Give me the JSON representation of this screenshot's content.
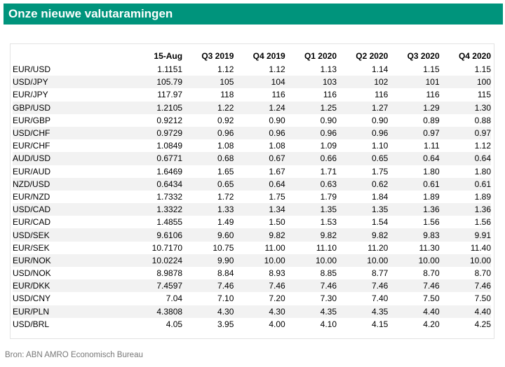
{
  "title": "Onze nieuwe valutaramingen",
  "columns": [
    "",
    "15-Aug",
    "Q3 2019",
    "Q4 2019",
    "Q1 2020",
    "Q2 2020",
    "Q3 2020",
    "Q4 2020"
  ],
  "rows": [
    [
      "EUR/USD",
      "1.1151",
      "1.12",
      "1.12",
      "1.13",
      "1.14",
      "1.15",
      "1.15"
    ],
    [
      "USD/JPY",
      "105.79",
      "105",
      "104",
      "103",
      "102",
      "101",
      "100"
    ],
    [
      "EUR/JPY",
      "117.97",
      "118",
      "116",
      "116",
      "116",
      "116",
      "115"
    ],
    [
      "GBP/USD",
      "1.2105",
      "1.22",
      "1.24",
      "1.25",
      "1.27",
      "1.29",
      "1.30"
    ],
    [
      "EUR/GBP",
      "0.9212",
      "0.92",
      "0.90",
      "0.90",
      "0.90",
      "0.89",
      "0.88"
    ],
    [
      "USD/CHF",
      "0.9729",
      "0.96",
      "0.96",
      "0.96",
      "0.96",
      "0.97",
      "0.97"
    ],
    [
      "EUR/CHF",
      "1.0849",
      "1.08",
      "1.08",
      "1.09",
      "1.10",
      "1.11",
      "1.12"
    ],
    [
      "AUD/USD",
      "0.6771",
      "0.68",
      "0.67",
      "0.66",
      "0.65",
      "0.64",
      "0.64"
    ],
    [
      "EUR/AUD",
      "1.6469",
      "1.65",
      "1.67",
      "1.71",
      "1.75",
      "1.80",
      "1.80"
    ],
    [
      "NZD/USD",
      "0.6434",
      "0.65",
      "0.64",
      "0.63",
      "0.62",
      "0.61",
      "0.61"
    ],
    [
      "EUR/NZD",
      "1.7332",
      "1.72",
      "1.75",
      "1.79",
      "1.84",
      "1.89",
      "1.89"
    ],
    [
      "USD/CAD",
      "1.3322",
      "1.33",
      "1.34",
      "1.35",
      "1.35",
      "1.36",
      "1.36"
    ],
    [
      "EUR/CAD",
      "1.4855",
      "1.49",
      "1.50",
      "1.53",
      "1.54",
      "1.56",
      "1.56"
    ],
    [
      "USD/SEK",
      "9.6106",
      "9.60",
      "9.82",
      "9.82",
      "9.82",
      "9.83",
      "9.91"
    ],
    [
      "EUR/SEK",
      "10.7170",
      "10.75",
      "11.00",
      "11.10",
      "11.20",
      "11.30",
      "11.40"
    ],
    [
      "EUR/NOK",
      "10.0224",
      "9.90",
      "10.00",
      "10.00",
      "10.00",
      "10.00",
      "10.00"
    ],
    [
      "USD/NOK",
      "8.9878",
      "8.84",
      "8.93",
      "8.85",
      "8.77",
      "8.70",
      "8.70"
    ],
    [
      "EUR/DKK",
      "7.4597",
      "7.46",
      "7.46",
      "7.46",
      "7.46",
      "7.46",
      "7.46"
    ],
    [
      "USD/CNY",
      "7.04",
      "7.10",
      "7.20",
      "7.30",
      "7.40",
      "7.50",
      "7.50"
    ],
    [
      "EUR/PLN",
      "4.3808",
      "4.30",
      "4.30",
      "4.35",
      "4.35",
      "4.40",
      "4.40"
    ],
    [
      "USD/BRL",
      "4.05",
      "3.95",
      "4.00",
      "4.10",
      "4.15",
      "4.20",
      "4.25"
    ]
  ],
  "source": "Bron: ABN AMRO Economisch Bureau",
  "colors": {
    "title_bar": "#00947c",
    "title_text": "#ffffff",
    "stripe": "#f2f2f2",
    "source_text": "#777777"
  }
}
